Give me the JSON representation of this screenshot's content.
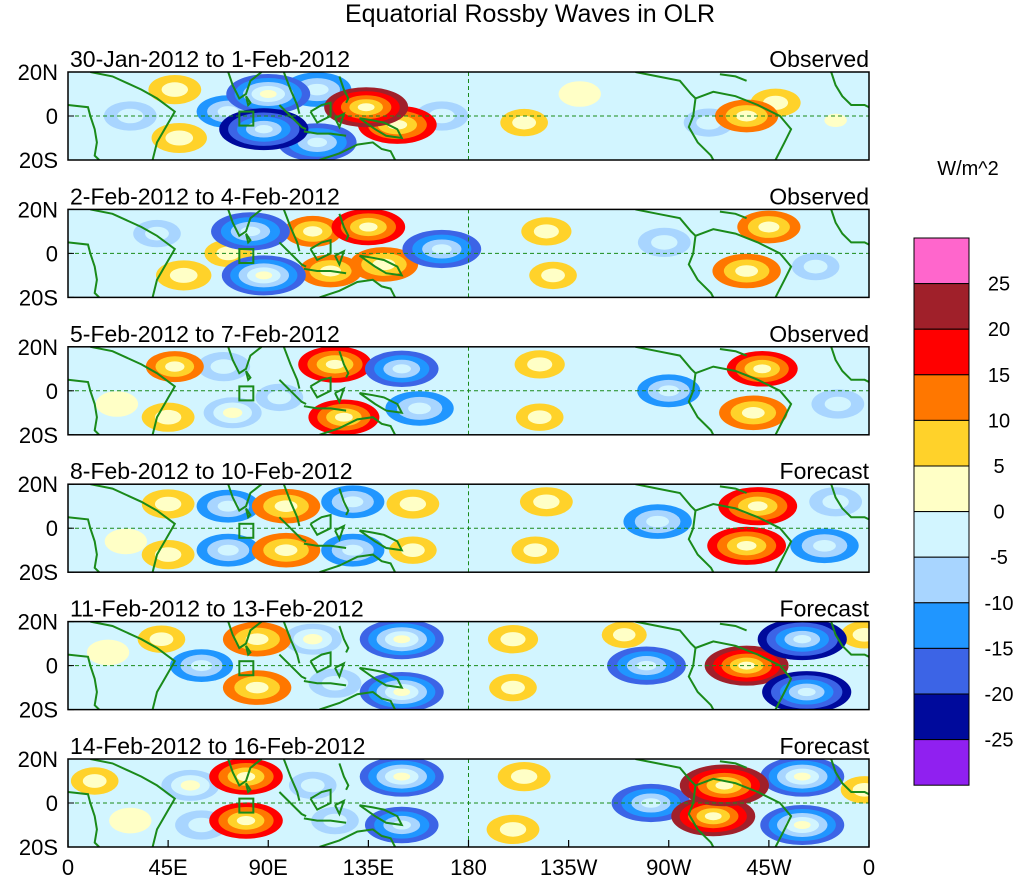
{
  "chart_data": {
    "type": "heatmap",
    "title": "Equatorial Rossby Waves in OLR",
    "units": "W/m^2",
    "colorbar": {
      "tick_labels": [
        "25",
        "20",
        "15",
        "10",
        "5",
        "0",
        "-5",
        "-10",
        "-15",
        "-20",
        "-25"
      ],
      "colors": [
        "#ff66cc",
        "#a0202a",
        "#ff0000",
        "#ff7700",
        "#ffd22a",
        "#ffffc6",
        "#d2f5ff",
        "#a8d5ff",
        "#2096ff",
        "#3c64e6",
        "#000a9c",
        "#9020f0"
      ]
    },
    "x_axis": {
      "tick_labels": [
        "0",
        "45E",
        "90E",
        "135E",
        "180",
        "135W",
        "90W",
        "45W",
        "0"
      ],
      "range_deg": [
        0,
        360
      ]
    },
    "y_axis": {
      "tick_labels": [
        "20N",
        "0",
        "20S"
      ],
      "range_deg": [
        -20,
        20
      ]
    },
    "panels": [
      {
        "date_range": "30-Jan-2012 to 1-Feb-2012",
        "status": "Observed",
        "anomalies": [
          {
            "lon": 28,
            "lat": 0,
            "value": -8
          },
          {
            "lon": 50,
            "lat": -10,
            "value": 9
          },
          {
            "lon": 48,
            "lat": 12,
            "value": 8
          },
          {
            "lon": 72,
            "lat": 2,
            "value": -12
          },
          {
            "lon": 88,
            "lat": -6,
            "value": -22
          },
          {
            "lon": 90,
            "lat": 10,
            "value": -20
          },
          {
            "lon": 112,
            "lat": -12,
            "value": -18
          },
          {
            "lon": 112,
            "lat": 12,
            "value": -14
          },
          {
            "lon": 134,
            "lat": 4,
            "value": 20
          },
          {
            "lon": 148,
            "lat": -4,
            "value": 18
          },
          {
            "lon": 168,
            "lat": 0,
            "value": -8
          },
          {
            "lon": 205,
            "lat": -3,
            "value": 6
          },
          {
            "lon": 230,
            "lat": 10,
            "value": 4
          },
          {
            "lon": 288,
            "lat": -3,
            "value": -7
          },
          {
            "lon": 305,
            "lat": 0,
            "value": 12
          },
          {
            "lon": 318,
            "lat": 6,
            "value": 7
          },
          {
            "lon": 345,
            "lat": -2,
            "value": -5
          }
        ]
      },
      {
        "date_range": "2-Feb-2012 to 4-Feb-2012",
        "status": "Observed",
        "anomalies": [
          {
            "lon": 40,
            "lat": 9,
            "value": -6
          },
          {
            "lon": 52,
            "lat": -10,
            "value": 9
          },
          {
            "lon": 72,
            "lat": 0,
            "value": 6
          },
          {
            "lon": 82,
            "lat": 10,
            "value": -18
          },
          {
            "lon": 88,
            "lat": -10,
            "value": -20
          },
          {
            "lon": 110,
            "lat": 10,
            "value": 10
          },
          {
            "lon": 118,
            "lat": -8,
            "value": 12
          },
          {
            "lon": 135,
            "lat": 12,
            "value": 16
          },
          {
            "lon": 142,
            "lat": -5,
            "value": 14
          },
          {
            "lon": 168,
            "lat": 2,
            "value": -18
          },
          {
            "lon": 215,
            "lat": 10,
            "value": 7
          },
          {
            "lon": 218,
            "lat": -10,
            "value": 6
          },
          {
            "lon": 268,
            "lat": 5,
            "value": -8
          },
          {
            "lon": 305,
            "lat": -8,
            "value": 14
          },
          {
            "lon": 315,
            "lat": 12,
            "value": 12
          },
          {
            "lon": 336,
            "lat": -6,
            "value": -6
          }
        ]
      },
      {
        "date_range": "5-Feb-2012 to 7-Feb-2012",
        "status": "Observed",
        "anomalies": [
          {
            "lon": 22,
            "lat": -6,
            "value": 4
          },
          {
            "lon": 48,
            "lat": 11,
            "value": 10
          },
          {
            "lon": 45,
            "lat": -12,
            "value": 8
          },
          {
            "lon": 70,
            "lat": 11,
            "value": -8
          },
          {
            "lon": 74,
            "lat": -10,
            "value": -10
          },
          {
            "lon": 95,
            "lat": -3,
            "value": -6
          },
          {
            "lon": 120,
            "lat": 12,
            "value": 16
          },
          {
            "lon": 124,
            "lat": -12,
            "value": 15
          },
          {
            "lon": 150,
            "lat": 10,
            "value": -16
          },
          {
            "lon": 158,
            "lat": -8,
            "value": -14
          },
          {
            "lon": 212,
            "lat": 12,
            "value": 7
          },
          {
            "lon": 212,
            "lat": -12,
            "value": 6
          },
          {
            "lon": 270,
            "lat": 0,
            "value": -12
          },
          {
            "lon": 312,
            "lat": 10,
            "value": 15
          },
          {
            "lon": 308,
            "lat": -10,
            "value": 14
          },
          {
            "lon": 346,
            "lat": -6,
            "value": -8
          }
        ]
      },
      {
        "date_range": "8-Feb-2012 to 10-Feb-2012",
        "status": "Forecast",
        "anomalies": [
          {
            "lon": 26,
            "lat": -6,
            "value": 4
          },
          {
            "lon": 45,
            "lat": 11,
            "value": 8
          },
          {
            "lon": 45,
            "lat": -12,
            "value": 8
          },
          {
            "lon": 72,
            "lat": 10,
            "value": -12
          },
          {
            "lon": 72,
            "lat": -10,
            "value": -12
          },
          {
            "lon": 98,
            "lat": 10,
            "value": 14
          },
          {
            "lon": 98,
            "lat": -10,
            "value": 14
          },
          {
            "lon": 128,
            "lat": 12,
            "value": -12
          },
          {
            "lon": 128,
            "lat": -10,
            "value": -12
          },
          {
            "lon": 155,
            "lat": 11,
            "value": 8
          },
          {
            "lon": 155,
            "lat": -10,
            "value": 6
          },
          {
            "lon": 215,
            "lat": 12,
            "value": 8
          },
          {
            "lon": 210,
            "lat": -10,
            "value": 6
          },
          {
            "lon": 265,
            "lat": 3,
            "value": -14
          },
          {
            "lon": 310,
            "lat": 10,
            "value": 18
          },
          {
            "lon": 305,
            "lat": -8,
            "value": 18
          },
          {
            "lon": 340,
            "lat": -8,
            "value": -14
          },
          {
            "lon": 345,
            "lat": 12,
            "value": -8
          }
        ]
      },
      {
        "date_range": "11-Feb-2012 to 13-Feb-2012",
        "status": "Forecast",
        "anomalies": [
          {
            "lon": 18,
            "lat": 6,
            "value": 4
          },
          {
            "lon": 42,
            "lat": 12,
            "value": 6
          },
          {
            "lon": 60,
            "lat": 0,
            "value": -12
          },
          {
            "lon": 85,
            "lat": 12,
            "value": 14
          },
          {
            "lon": 85,
            "lat": -10,
            "value": 14
          },
          {
            "lon": 110,
            "lat": 12,
            "value": -10
          },
          {
            "lon": 120,
            "lat": -8,
            "value": -8
          },
          {
            "lon": 150,
            "lat": 12,
            "value": -20
          },
          {
            "lon": 150,
            "lat": -12,
            "value": -20
          },
          {
            "lon": 200,
            "lat": 12,
            "value": 7
          },
          {
            "lon": 200,
            "lat": -10,
            "value": 6
          },
          {
            "lon": 250,
            "lat": 14,
            "value": 5
          },
          {
            "lon": 260,
            "lat": 0,
            "value": -18
          },
          {
            "lon": 305,
            "lat": 0,
            "value": 20
          },
          {
            "lon": 330,
            "lat": 12,
            "value": -22
          },
          {
            "lon": 332,
            "lat": -12,
            "value": -22
          },
          {
            "lon": 358,
            "lat": 14,
            "value": 6
          }
        ]
      },
      {
        "date_range": "14-Feb-2012 to 16-Feb-2012",
        "status": "Forecast",
        "anomalies": [
          {
            "lon": 12,
            "lat": 10,
            "value": 6
          },
          {
            "lon": 28,
            "lat": -8,
            "value": 4
          },
          {
            "lon": 55,
            "lat": 8,
            "value": -10
          },
          {
            "lon": 60,
            "lat": -10,
            "value": -8
          },
          {
            "lon": 80,
            "lat": 12,
            "value": 16
          },
          {
            "lon": 80,
            "lat": -8,
            "value": 16
          },
          {
            "lon": 110,
            "lat": 8,
            "value": -6
          },
          {
            "lon": 120,
            "lat": -8,
            "value": -6
          },
          {
            "lon": 150,
            "lat": 12,
            "value": -20
          },
          {
            "lon": 150,
            "lat": -10,
            "value": -16
          },
          {
            "lon": 205,
            "lat": 12,
            "value": 8
          },
          {
            "lon": 200,
            "lat": -12,
            "value": 8
          },
          {
            "lon": 262,
            "lat": 0,
            "value": -18
          },
          {
            "lon": 295,
            "lat": 8,
            "value": 22
          },
          {
            "lon": 290,
            "lat": -6,
            "value": 20
          },
          {
            "lon": 330,
            "lat": 12,
            "value": -20
          },
          {
            "lon": 330,
            "lat": -10,
            "value": -20
          },
          {
            "lon": 358,
            "lat": 6,
            "value": 6
          }
        ]
      }
    ]
  }
}
